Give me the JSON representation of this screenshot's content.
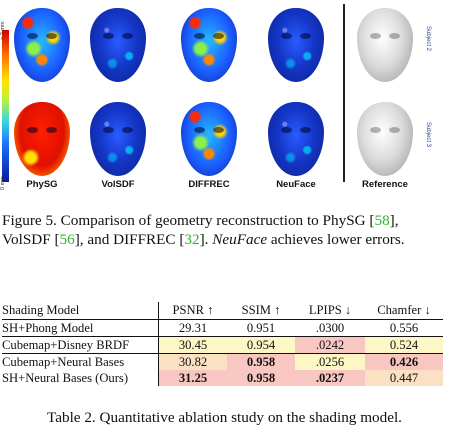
{
  "figure": {
    "colorbar": {
      "top_label": "> 2 mm",
      "bottom_label": "0 mm"
    },
    "methods": [
      "PhySG",
      "VolSDF",
      "DIFFREC",
      "NeuFace",
      "Reference"
    ],
    "subjects": [
      "Subject 2",
      "Subject 3"
    ],
    "colors": {
      "error_high": "#d40000",
      "error_low": "#0a1a9a",
      "subject_label": "#2a4a8a",
      "citation": "#2bb52b"
    }
  },
  "figure_caption": {
    "prefix": "Figure 5. Comparison of geometry reconstruction to PhySG [",
    "ref1": "58",
    "mid1": "], VolSDF [",
    "ref2": "56",
    "mid2": "], and DIFFREC [",
    "ref3": "32",
    "mid3": "]. ",
    "method": "NeuFace",
    "suffix": " achieves lower errors."
  },
  "table": {
    "headers": [
      "Shading Model",
      "PSNR ↑",
      "SSIM ↑",
      "LPIPS ↓",
      "Chamfer ↓"
    ],
    "rows": [
      [
        "SH+Phong Model",
        "29.31",
        "0.951",
        ".0300",
        "0.556"
      ],
      [
        "Cubemap+Disney BRDF",
        "30.45",
        "0.954",
        ".0242",
        "0.524"
      ],
      [
        "Cubemap+Neural Bases",
        "30.82",
        "0.958",
        ".0256",
        "0.426"
      ],
      [
        "SH+Neural Bases (Ours)",
        "31.25",
        "0.958",
        ".0237",
        "0.447"
      ]
    ],
    "caption": "Table 2. Quantitative ablation study on the shading model."
  }
}
